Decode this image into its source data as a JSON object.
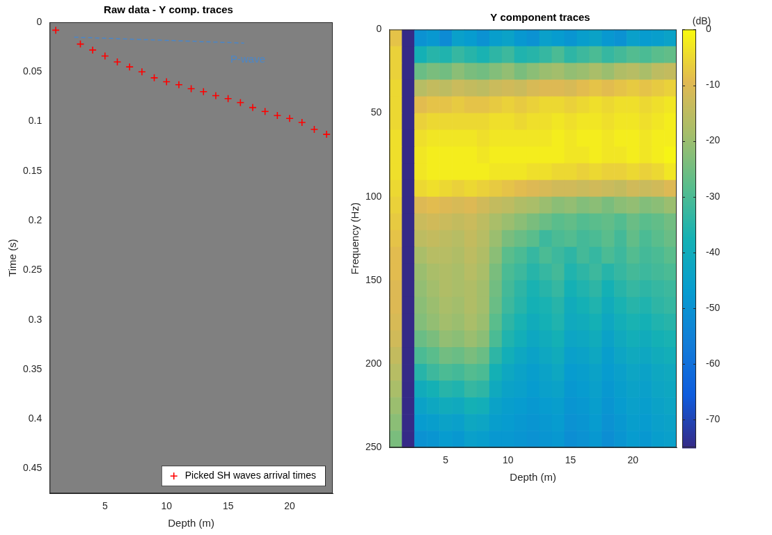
{
  "chart_data": [
    {
      "type": "scatter",
      "title": "Raw data - Y comp. traces",
      "x_label": "Depth (m)",
      "y_label": "Time (s)",
      "xlim": [
        0.5,
        23.5
      ],
      "xticks": [
        5,
        10,
        15,
        20
      ],
      "ylim": [
        0,
        0.475
      ],
      "yticks": [
        0,
        0.05,
        0.1,
        0.15,
        0.2,
        0.25,
        0.3,
        0.35,
        0.4,
        0.45
      ],
      "grid": false,
      "legend": "lower right",
      "series": [
        {
          "name": "Picked SH waves arrival times",
          "color": "#ff0000",
          "marker": "plus",
          "x": [
            1,
            3,
            4,
            5,
            6,
            7,
            8,
            9,
            10,
            11,
            12,
            13,
            14,
            15,
            16,
            17,
            18,
            19,
            20,
            21,
            22,
            23
          ],
          "values": [
            0.008,
            0.022,
            0.028,
            0.034,
            0.04,
            0.045,
            0.05,
            0.056,
            0.06,
            0.063,
            0.067,
            0.07,
            0.074,
            0.077,
            0.081,
            0.086,
            0.09,
            0.094,
            0.097,
            0.101,
            0.108,
            0.113
          ]
        }
      ],
      "annotations": [
        {
          "text": "P-wave",
          "x": 16.6,
          "y": 0.038,
          "color": "#4a86c8",
          "line_style": "dashed",
          "line_x": [
            2.5,
            16.3
          ],
          "line_y": [
            0.015,
            0.021
          ]
        }
      ]
    },
    {
      "type": "heatmap",
      "title": "Y component traces",
      "x_label": "Depth (m)",
      "y_label": "Frequency (Hz)",
      "xlim": [
        0.5,
        23.5
      ],
      "xticks": [
        5,
        10,
        15,
        20
      ],
      "ylim": [
        0,
        250
      ],
      "yticks": [
        0,
        50,
        100,
        150,
        200,
        250
      ],
      "grid": false,
      "x": [
        1,
        2,
        3,
        4,
        5,
        6,
        7,
        8,
        9,
        10,
        11,
        12,
        13,
        14,
        15,
        16,
        17,
        18,
        19,
        20,
        21,
        22,
        23
      ],
      "y_bins": [
        0,
        10,
        20,
        30,
        40,
        50,
        60,
        70,
        80,
        90,
        100,
        110,
        120,
        130,
        140,
        150,
        160,
        170,
        180,
        190,
        200,
        210,
        220,
        230,
        240,
        250
      ],
      "cells": [
        [
          -8,
          -75,
          -50,
          -48,
          -52,
          -45,
          -47,
          -50,
          -46,
          -44,
          -48,
          -50,
          -45,
          -47,
          -49,
          -46,
          -44,
          -48,
          -50,
          -45,
          -47,
          -46,
          -44
        ],
        [
          -6,
          -75,
          -38,
          -35,
          -36,
          -33,
          -35,
          -37,
          -34,
          -32,
          -36,
          -35,
          -33,
          -30,
          -34,
          -32,
          -30,
          -33,
          -31,
          -29,
          -30,
          -28,
          -27
        ],
        [
          -6,
          -75,
          -26,
          -24,
          -25,
          -22,
          -24,
          -25,
          -23,
          -21,
          -24,
          -22,
          -20,
          -19,
          -21,
          -20,
          -18,
          -20,
          -17,
          -16,
          -18,
          -15,
          -14
        ],
        [
          -5,
          -75,
          -16,
          -14,
          -15,
          -13,
          -14,
          -15,
          -13,
          -12,
          -13,
          -11,
          -10,
          -10,
          -11,
          -9,
          -8,
          -9,
          -8,
          -7,
          -8,
          -7,
          -6
        ],
        [
          -5,
          -75,
          -9,
          -8,
          -8,
          -7,
          -8,
          -8,
          -7,
          -6,
          -7,
          -6,
          -5,
          -5,
          -6,
          -5,
          -4,
          -5,
          -4,
          -4,
          -5,
          -4,
          -3
        ],
        [
          -5,
          -75,
          -6,
          -5,
          -5,
          -5,
          -5,
          -5,
          -4,
          -4,
          -5,
          -4,
          -4,
          -3,
          -4,
          -3,
          -3,
          -4,
          -3,
          -3,
          -4,
          -3,
          -2
        ],
        [
          -4,
          -75,
          -4,
          -3,
          -3,
          -3,
          -3,
          -4,
          -3,
          -3,
          -3,
          -3,
          -3,
          -2,
          -3,
          -2,
          -2,
          -3,
          -2,
          -2,
          -3,
          -2,
          -2
        ],
        [
          -4,
          -75,
          -3,
          -2,
          -2,
          -2,
          -2,
          -3,
          -2,
          -2,
          -2,
          -2,
          -2,
          -2,
          -3,
          -3,
          -2,
          -3,
          -3,
          -2,
          -3,
          -2,
          -1
        ],
        [
          -4,
          -75,
          -3,
          -2,
          -2,
          -2,
          -2,
          -2,
          -3,
          -3,
          -3,
          -4,
          -4,
          -5,
          -5,
          -6,
          -5,
          -6,
          -6,
          -5,
          -6,
          -5,
          -3
        ],
        [
          -5,
          -75,
          -5,
          -4,
          -5,
          -6,
          -5,
          -6,
          -7,
          -8,
          -9,
          -10,
          -11,
          -12,
          -12,
          -13,
          -12,
          -13,
          -14,
          -12,
          -13,
          -12,
          -10
        ],
        [
          -6,
          -75,
          -10,
          -9,
          -10,
          -11,
          -10,
          -12,
          -14,
          -15,
          -17,
          -18,
          -20,
          -22,
          -21,
          -23,
          -22,
          -24,
          -22,
          -21,
          -23,
          -22,
          -20
        ],
        [
          -7,
          -75,
          -13,
          -12,
          -13,
          -14,
          -13,
          -15,
          -18,
          -20,
          -22,
          -24,
          -26,
          -28,
          -27,
          -29,
          -28,
          -27,
          -29,
          -26,
          -28,
          -27,
          -25
        ],
        [
          -8,
          -75,
          -15,
          -14,
          -15,
          -16,
          -14,
          -16,
          -20,
          -24,
          -26,
          -28,
          -32,
          -30,
          -29,
          -31,
          -30,
          -28,
          -31,
          -27,
          -30,
          -28,
          -26
        ],
        [
          -9,
          -75,
          -18,
          -16,
          -16,
          -17,
          -15,
          -17,
          -22,
          -28,
          -30,
          -33,
          -30,
          -32,
          -34,
          -31,
          -33,
          -30,
          -32,
          -29,
          -31,
          -30,
          -28
        ],
        [
          -9,
          -75,
          -20,
          -18,
          -17,
          -18,
          -16,
          -18,
          -24,
          -30,
          -32,
          -35,
          -33,
          -31,
          -36,
          -34,
          -32,
          -35,
          -33,
          -31,
          -32,
          -31,
          -30
        ],
        [
          -10,
          -75,
          -21,
          -19,
          -17,
          -18,
          -17,
          -19,
          -25,
          -31,
          -34,
          -37,
          -35,
          -33,
          -38,
          -36,
          -34,
          -38,
          -35,
          -33,
          -34,
          -33,
          -32
        ],
        [
          -10,
          -75,
          -22,
          -20,
          -18,
          -19,
          -17,
          -19,
          -26,
          -32,
          -35,
          -38,
          -37,
          -35,
          -40,
          -38,
          -36,
          -40,
          -37,
          -35,
          -36,
          -34,
          -33
        ],
        [
          -11,
          -75,
          -23,
          -21,
          -19,
          -20,
          -18,
          -20,
          -28,
          -34,
          -37,
          -40,
          -38,
          -36,
          -41,
          -40,
          -38,
          -42,
          -39,
          -37,
          -38,
          -36,
          -35
        ],
        [
          -12,
          -75,
          -26,
          -24,
          -21,
          -22,
          -20,
          -22,
          -30,
          -36,
          -39,
          -42,
          -40,
          -38,
          -43,
          -42,
          -40,
          -44,
          -41,
          -39,
          -40,
          -38,
          -37
        ],
        [
          -14,
          -75,
          -30,
          -28,
          -25,
          -26,
          -24,
          -26,
          -34,
          -39,
          -42,
          -44,
          -42,
          -40,
          -45,
          -44,
          -42,
          -46,
          -43,
          -41,
          -42,
          -40,
          -39
        ],
        [
          -16,
          -75,
          -35,
          -32,
          -30,
          -31,
          -29,
          -30,
          -38,
          -42,
          -44,
          -46,
          -44,
          -42,
          -47,
          -46,
          -44,
          -47,
          -45,
          -43,
          -44,
          -42,
          -41
        ],
        [
          -18,
          -75,
          -40,
          -38,
          -35,
          -36,
          -33,
          -34,
          -41,
          -44,
          -45,
          -47,
          -45,
          -44,
          -48,
          -47,
          -45,
          -48,
          -46,
          -44,
          -45,
          -43,
          -42
        ],
        [
          -20,
          -75,
          -44,
          -42,
          -40,
          -41,
          -38,
          -39,
          -44,
          -46,
          -47,
          -48,
          -47,
          -46,
          -49,
          -48,
          -46,
          -49,
          -47,
          -45,
          -46,
          -44,
          -43
        ],
        [
          -22,
          -75,
          -47,
          -46,
          -44,
          -45,
          -42,
          -43,
          -46,
          -47,
          -48,
          -49,
          -48,
          -47,
          -50,
          -49,
          -47,
          -50,
          -48,
          -46,
          -47,
          -45,
          -44
        ],
        [
          -24,
          -75,
          -50,
          -49,
          -47,
          -48,
          -45,
          -46,
          -48,
          -48,
          -49,
          -50,
          -49,
          -48,
          -51,
          -50,
          -48,
          -51,
          -49,
          -47,
          -48,
          -46,
          -45
        ]
      ],
      "colorbar": {
        "label": "(dB)",
        "range": [
          -75,
          0
        ],
        "ticks": [
          0,
          -10,
          -20,
          -30,
          -40,
          -50,
          -60,
          -70
        ]
      }
    }
  ]
}
